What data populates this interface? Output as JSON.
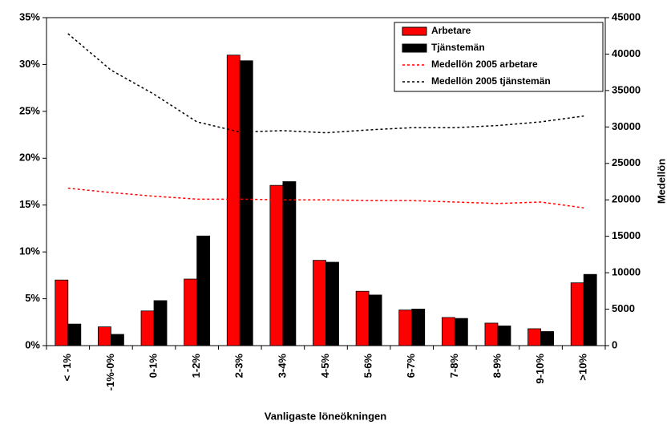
{
  "chart_data": {
    "type": "bar_line",
    "x_label": "Vanligaste löneökningen",
    "y2_label": "Medellön",
    "categories": [
      "< -1%",
      "-1%-0%",
      "0-1%",
      "1-2%",
      "2-3%",
      "3-4%",
      "4-5%",
      "5-6%",
      "6-7%",
      "7-8%",
      "8-9%",
      "9-10%",
      ">10%"
    ],
    "series": [
      {
        "name": "Arbetare",
        "type": "bar",
        "color": "#ff0000",
        "values": [
          7,
          2,
          3.7,
          7.1,
          31,
          17.1,
          9.1,
          5.8,
          3.8,
          3.0,
          2.4,
          1.8,
          6.7
        ]
      },
      {
        "name": "Tjänstemän",
        "type": "bar",
        "color": "#000000",
        "values": [
          2.3,
          1.2,
          4.8,
          11.7,
          30.4,
          17.5,
          8.9,
          5.4,
          3.9,
          2.9,
          2.1,
          1.5,
          7.6
        ]
      },
      {
        "name": "Medellön 2005 arbetare",
        "type": "line",
        "axis": "y2",
        "color": "#ff0000",
        "values": [
          21600,
          21000,
          20500,
          20100,
          20100,
          20000,
          20000,
          19900,
          19900,
          19700,
          19500,
          19700,
          18900
        ]
      },
      {
        "name": "Medellön 2005 tjänstemän",
        "type": "line",
        "axis": "y2",
        "color": "#000000",
        "values": [
          42800,
          37800,
          34500,
          30700,
          29300,
          29500,
          29200,
          29600,
          29900,
          29900,
          30200,
          30700,
          31500
        ]
      }
    ],
    "ylim": [
      0,
      35
    ],
    "yticks": [
      {
        "value": 0,
        "label": "0%"
      },
      {
        "value": 5,
        "label": "5%"
      },
      {
        "value": 10,
        "label": "10%"
      },
      {
        "value": 15,
        "label": "15%"
      },
      {
        "value": 20,
        "label": "20%"
      },
      {
        "value": 25,
        "label": "25%"
      },
      {
        "value": 30,
        "label": "30%"
      },
      {
        "value": 35,
        "label": "35%"
      }
    ],
    "y2lim": [
      0,
      45000
    ],
    "y2ticks": [
      0,
      5000,
      10000,
      15000,
      20000,
      25000,
      30000,
      35000,
      40000,
      45000
    ],
    "legend": "top-right"
  }
}
